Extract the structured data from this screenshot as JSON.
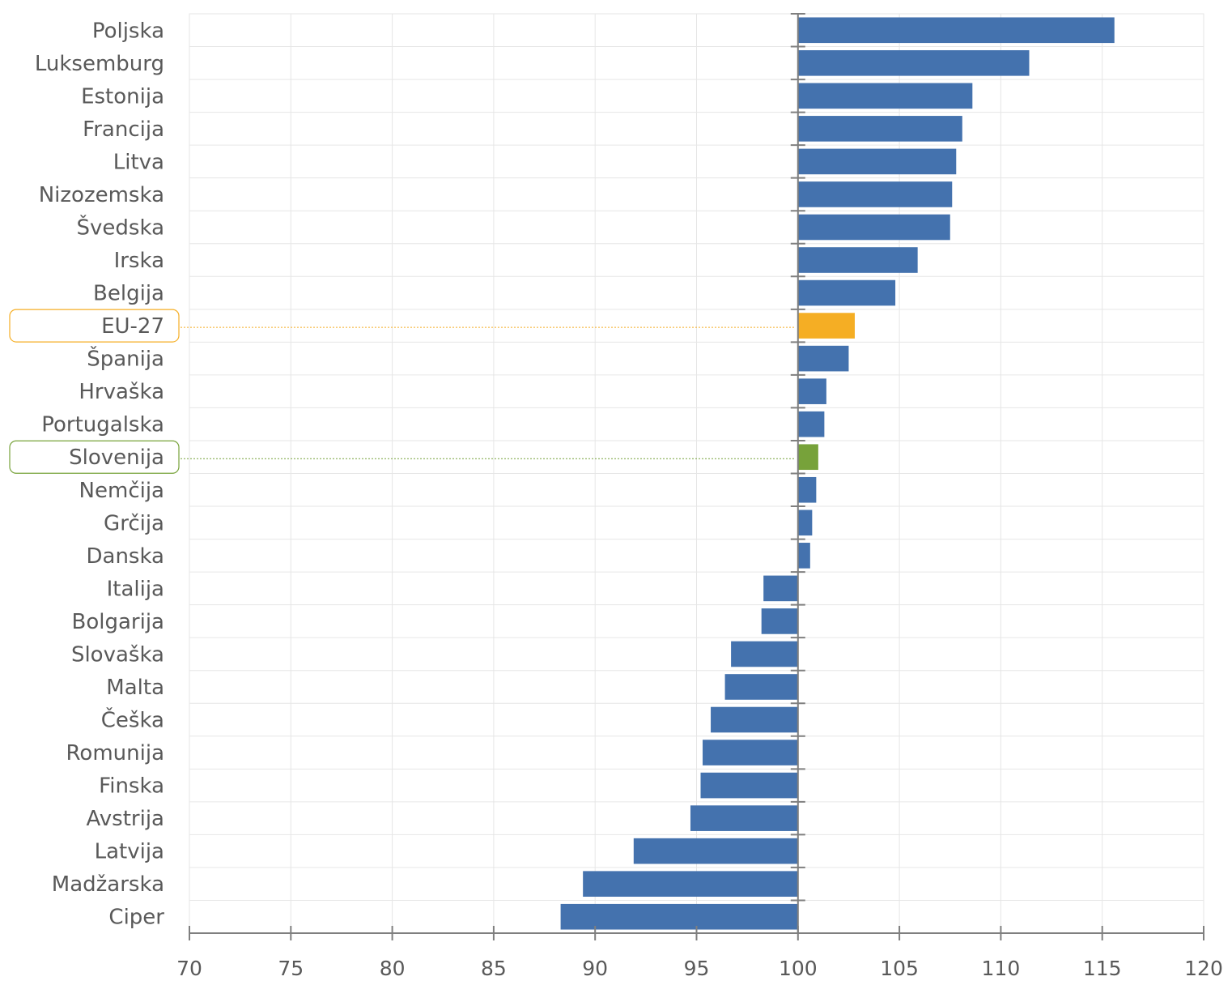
{
  "chart_data": {
    "type": "bar",
    "orientation": "horizontal",
    "baseline": 100,
    "title": "",
    "xlabel": "",
    "ylabel": "",
    "xlim": [
      70,
      120
    ],
    "x_ticks": [
      70,
      75,
      80,
      85,
      90,
      95,
      100,
      105,
      110,
      115,
      120
    ],
    "grid": true,
    "categories": [
      "Poljska",
      "Luksemburg",
      "Estonija",
      "Francija",
      "Litva",
      "Nizozemska",
      "Švedska",
      "Irska",
      "Belgija",
      "EU-27",
      "Španija",
      "Hrvaška",
      "Portugalska",
      "Slovenija",
      "Nemčija",
      "Grčija",
      "Danska",
      "Italija",
      "Bolgarija",
      "Slovaška",
      "Malta",
      "Češka",
      "Romunija",
      "Finska",
      "Avstrija",
      "Latvija",
      "Madžarska",
      "Ciper"
    ],
    "values": [
      115.6,
      111.4,
      108.6,
      108.1,
      107.8,
      107.6,
      107.5,
      105.9,
      104.8,
      102.8,
      102.5,
      101.4,
      101.3,
      101.0,
      100.9,
      100.7,
      100.6,
      98.3,
      98.2,
      96.7,
      96.4,
      95.7,
      95.3,
      95.2,
      94.7,
      91.9,
      89.4,
      88.3
    ],
    "highlights": [
      {
        "category": "EU-27",
        "color": "#F5AE24"
      },
      {
        "category": "Slovenija",
        "color": "#77A23A"
      }
    ],
    "colors": {
      "default": "#4472AE"
    }
  }
}
